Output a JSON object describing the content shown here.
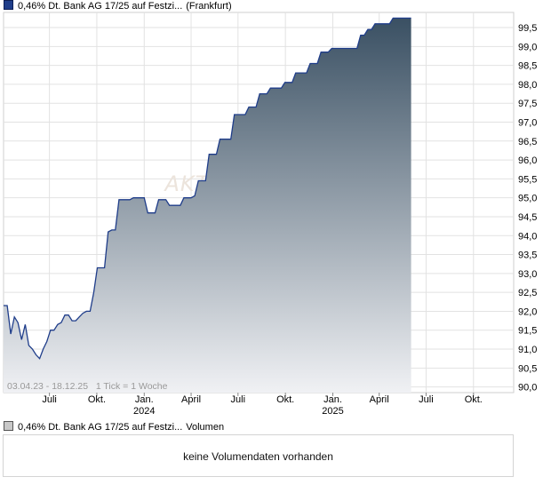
{
  "legend": {
    "price_series": "0,46% Dt. Bank AG 17/25 auf Festzi...",
    "exchange": "(Frankfurt)",
    "volume_series": "0,46% Dt. Bank AG 17/25 auf Festzi...",
    "volume_label": "Volumen"
  },
  "watermark": "AKTIEN",
  "range_note": "03.04.23 - 18.12.25   1 Tick = 1 Woche",
  "volume_message": "keine Volumendaten vorhanden",
  "colors": {
    "line": "#1f3d8a",
    "fill_top": "#3a5063",
    "fill_bottom": "#f0f1f4",
    "grid": "#e2e2e2",
    "watermark": "#ece4dc"
  },
  "chart_data": {
    "type": "area",
    "title": "",
    "xlabel": "",
    "ylabel": "",
    "x_start": "2023-04-03",
    "x_end": "2025-12-18",
    "tick_interval": "1 Woche",
    "ylim": [
      89.85,
      99.9
    ],
    "y_ticks": [
      "90,0",
      "90,5",
      "91,0",
      "91,5",
      "92,0",
      "92,5",
      "93,0",
      "93,5",
      "94,0",
      "94,5",
      "95,0",
      "95,5",
      "96,0",
      "96,5",
      "97,0",
      "97,5",
      "98,0",
      "98,5",
      "99,0",
      "99,5"
    ],
    "y_tick_values": [
      90.0,
      90.5,
      91.0,
      91.5,
      92.0,
      92.5,
      93.0,
      93.5,
      94.0,
      94.5,
      95.0,
      95.5,
      96.0,
      96.5,
      97.0,
      97.5,
      98.0,
      98.5,
      99.0,
      99.5
    ],
    "x_ticks": [
      {
        "label": "Juli",
        "year": "",
        "date": "2023-07-01"
      },
      {
        "label": "Okt.",
        "year": "",
        "date": "2023-10-01"
      },
      {
        "label": "Jan.",
        "year": "2024",
        "date": "2024-01-01"
      },
      {
        "label": "April",
        "year": "",
        "date": "2024-04-01"
      },
      {
        "label": "Juli",
        "year": "",
        "date": "2024-07-01"
      },
      {
        "label": "Okt.",
        "year": "",
        "date": "2024-10-01"
      },
      {
        "label": "Jan.",
        "year": "2025",
        "date": "2025-01-01"
      },
      {
        "label": "April",
        "year": "",
        "date": "2025-04-01"
      },
      {
        "label": "Juli",
        "year": "",
        "date": "2025-07-01"
      },
      {
        "label": "Okt.",
        "year": "",
        "date": "2025-10-01"
      }
    ],
    "grid": true,
    "series": [
      {
        "name": "0,46% Dt. Bank AG 17/25 auf Festzi...",
        "points": [
          {
            "x": "2023-04-03",
            "y": 92.15
          },
          {
            "x": "2023-04-10",
            "y": 92.15
          },
          {
            "x": "2023-04-17",
            "y": 91.4
          },
          {
            "x": "2023-04-24",
            "y": 91.85
          },
          {
            "x": "2023-05-01",
            "y": 91.7
          },
          {
            "x": "2023-05-08",
            "y": 91.25
          },
          {
            "x": "2023-05-15",
            "y": 91.65
          },
          {
            "x": "2023-05-22",
            "y": 91.1
          },
          {
            "x": "2023-05-29",
            "y": 91.0
          },
          {
            "x": "2023-06-05",
            "y": 90.85
          },
          {
            "x": "2023-06-12",
            "y": 90.75
          },
          {
            "x": "2023-06-19",
            "y": 91.0
          },
          {
            "x": "2023-06-26",
            "y": 91.2
          },
          {
            "x": "2023-07-03",
            "y": 91.5
          },
          {
            "x": "2023-07-10",
            "y": 91.5
          },
          {
            "x": "2023-07-17",
            "y": 91.65
          },
          {
            "x": "2023-07-24",
            "y": 91.7
          },
          {
            "x": "2023-07-31",
            "y": 91.9
          },
          {
            "x": "2023-08-07",
            "y": 91.9
          },
          {
            "x": "2023-08-14",
            "y": 91.75
          },
          {
            "x": "2023-08-21",
            "y": 91.75
          },
          {
            "x": "2023-08-28",
            "y": 91.85
          },
          {
            "x": "2023-09-04",
            "y": 91.95
          },
          {
            "x": "2023-09-11",
            "y": 92.0
          },
          {
            "x": "2023-09-18",
            "y": 92.0
          },
          {
            "x": "2023-09-25",
            "y": 92.5
          },
          {
            "x": "2023-10-02",
            "y": 93.15
          },
          {
            "x": "2023-10-09",
            "y": 93.15
          },
          {
            "x": "2023-10-16",
            "y": 93.15
          },
          {
            "x": "2023-10-23",
            "y": 94.1
          },
          {
            "x": "2023-10-30",
            "y": 94.15
          },
          {
            "x": "2023-11-06",
            "y": 94.15
          },
          {
            "x": "2023-11-13",
            "y": 94.95
          },
          {
            "x": "2023-11-20",
            "y": 94.95
          },
          {
            "x": "2023-11-27",
            "y": 94.95
          },
          {
            "x": "2023-12-04",
            "y": 94.95
          },
          {
            "x": "2023-12-11",
            "y": 95.0
          },
          {
            "x": "2023-12-18",
            "y": 95.0
          },
          {
            "x": "2023-12-25",
            "y": 95.0
          },
          {
            "x": "2024-01-01",
            "y": 95.0
          },
          {
            "x": "2024-01-08",
            "y": 94.6
          },
          {
            "x": "2024-01-15",
            "y": 94.6
          },
          {
            "x": "2024-01-22",
            "y": 94.6
          },
          {
            "x": "2024-01-29",
            "y": 94.95
          },
          {
            "x": "2024-02-05",
            "y": 94.95
          },
          {
            "x": "2024-02-12",
            "y": 94.95
          },
          {
            "x": "2024-02-19",
            "y": 94.8
          },
          {
            "x": "2024-02-26",
            "y": 94.8
          },
          {
            "x": "2024-03-04",
            "y": 94.8
          },
          {
            "x": "2024-03-11",
            "y": 94.8
          },
          {
            "x": "2024-03-18",
            "y": 95.0
          },
          {
            "x": "2024-03-25",
            "y": 95.0
          },
          {
            "x": "2024-04-01",
            "y": 95.0
          },
          {
            "x": "2024-04-08",
            "y": 95.05
          },
          {
            "x": "2024-04-15",
            "y": 95.45
          },
          {
            "x": "2024-04-22",
            "y": 95.45
          },
          {
            "x": "2024-04-29",
            "y": 95.45
          },
          {
            "x": "2024-05-06",
            "y": 96.15
          },
          {
            "x": "2024-05-13",
            "y": 96.15
          },
          {
            "x": "2024-05-20",
            "y": 96.15
          },
          {
            "x": "2024-05-27",
            "y": 96.55
          },
          {
            "x": "2024-06-03",
            "y": 96.55
          },
          {
            "x": "2024-06-10",
            "y": 96.55
          },
          {
            "x": "2024-06-17",
            "y": 96.55
          },
          {
            "x": "2024-06-24",
            "y": 97.2
          },
          {
            "x": "2024-07-01",
            "y": 97.2
          },
          {
            "x": "2024-07-08",
            "y": 97.2
          },
          {
            "x": "2024-07-15",
            "y": 97.2
          },
          {
            "x": "2024-07-22",
            "y": 97.4
          },
          {
            "x": "2024-07-29",
            "y": 97.4
          },
          {
            "x": "2024-08-05",
            "y": 97.4
          },
          {
            "x": "2024-08-12",
            "y": 97.75
          },
          {
            "x": "2024-08-19",
            "y": 97.75
          },
          {
            "x": "2024-08-26",
            "y": 97.75
          },
          {
            "x": "2024-09-02",
            "y": 97.9
          },
          {
            "x": "2024-09-09",
            "y": 97.9
          },
          {
            "x": "2024-09-16",
            "y": 97.9
          },
          {
            "x": "2024-09-23",
            "y": 97.9
          },
          {
            "x": "2024-09-30",
            "y": 98.05
          },
          {
            "x": "2024-10-07",
            "y": 98.05
          },
          {
            "x": "2024-10-14",
            "y": 98.05
          },
          {
            "x": "2024-10-21",
            "y": 98.3
          },
          {
            "x": "2024-10-28",
            "y": 98.3
          },
          {
            "x": "2024-11-04",
            "y": 98.3
          },
          {
            "x": "2024-11-11",
            "y": 98.3
          },
          {
            "x": "2024-11-18",
            "y": 98.55
          },
          {
            "x": "2024-11-25",
            "y": 98.55
          },
          {
            "x": "2024-12-02",
            "y": 98.55
          },
          {
            "x": "2024-12-09",
            "y": 98.85
          },
          {
            "x": "2024-12-16",
            "y": 98.85
          },
          {
            "x": "2024-12-23",
            "y": 98.85
          },
          {
            "x": "2024-12-30",
            "y": 98.95
          },
          {
            "x": "2025-01-06",
            "y": 98.95
          },
          {
            "x": "2025-01-13",
            "y": 98.95
          },
          {
            "x": "2025-01-20",
            "y": 98.95
          },
          {
            "x": "2025-01-27",
            "y": 98.95
          },
          {
            "x": "2025-02-03",
            "y": 98.95
          },
          {
            "x": "2025-02-10",
            "y": 98.95
          },
          {
            "x": "2025-02-17",
            "y": 98.95
          },
          {
            "x": "2025-02-24",
            "y": 99.3
          },
          {
            "x": "2025-03-03",
            "y": 99.3
          },
          {
            "x": "2025-03-10",
            "y": 99.45
          },
          {
            "x": "2025-03-17",
            "y": 99.45
          },
          {
            "x": "2025-03-24",
            "y": 99.6
          },
          {
            "x": "2025-03-31",
            "y": 99.6
          },
          {
            "x": "2025-04-07",
            "y": 99.6
          },
          {
            "x": "2025-04-14",
            "y": 99.6
          },
          {
            "x": "2025-04-21",
            "y": 99.6
          },
          {
            "x": "2025-04-28",
            "y": 99.75
          },
          {
            "x": "2025-05-05",
            "y": 99.75
          },
          {
            "x": "2025-05-12",
            "y": 99.75
          },
          {
            "x": "2025-05-19",
            "y": 99.75
          },
          {
            "x": "2025-05-26",
            "y": 99.75
          },
          {
            "x": "2025-06-02",
            "y": 99.75
          }
        ]
      }
    ]
  }
}
